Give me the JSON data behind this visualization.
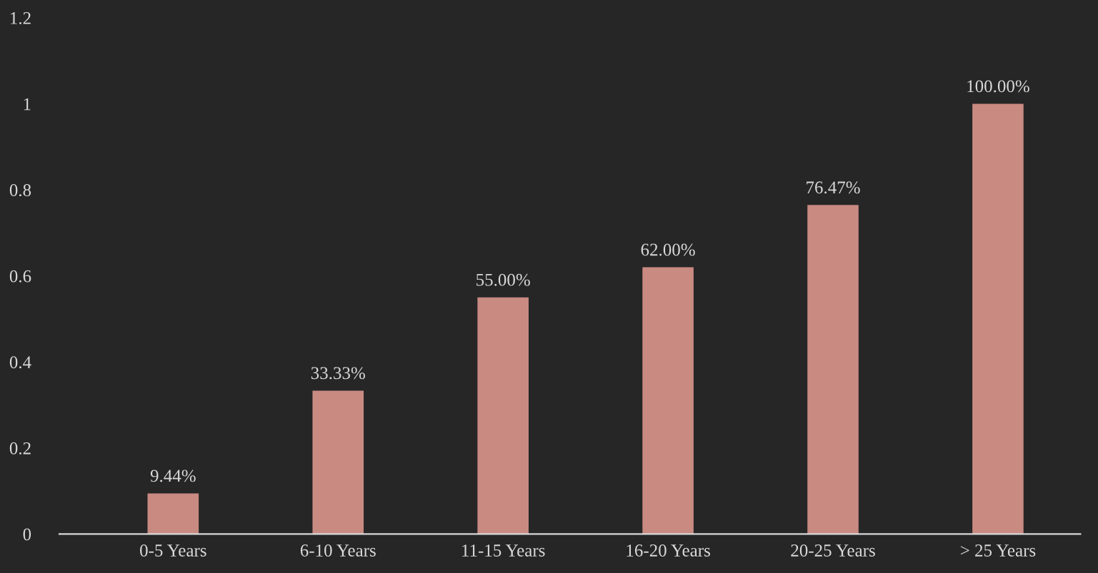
{
  "chart_data": {
    "type": "bar",
    "categories": [
      "0-5 Years",
      "6-10 Years",
      "11-15 Years",
      "16-20 Years",
      "20-25 Years",
      "> 25 Years"
    ],
    "values": [
      0.0944,
      0.3333,
      0.55,
      0.62,
      0.7647,
      1
    ],
    "value_labels": [
      "9.44%",
      "33.33%",
      "55.00%",
      "62.00%",
      "76.47%",
      "100.00%"
    ],
    "color": "#c98a82",
    "ylim": [
      0,
      1.2
    ],
    "yticks": [
      0,
      0.2,
      0.4,
      0.6,
      0.8,
      1,
      1.2
    ],
    "grid": false,
    "legend": false
  }
}
